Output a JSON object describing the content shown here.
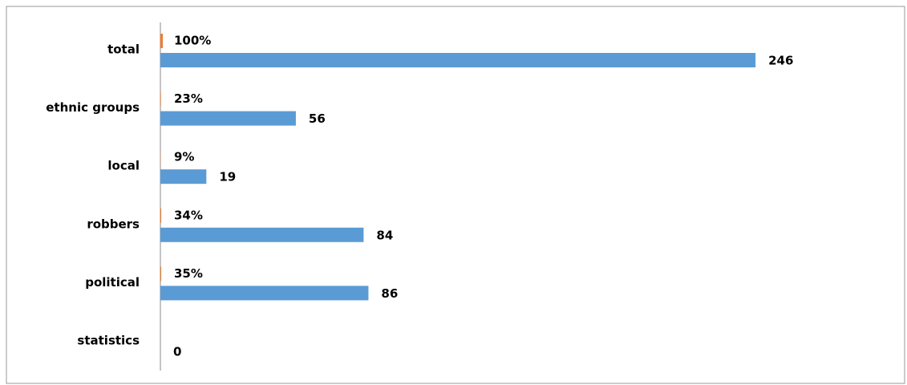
{
  "chart_data": {
    "type": "barh",
    "categories": [
      "total",
      "ethnic groups",
      "local",
      "robbers",
      "political",
      "statistics"
    ],
    "series": [
      {
        "color": "#ed7d31",
        "values": [
          1,
          0.23,
          0.09,
          0.34,
          0.35,
          null
        ],
        "value_labels": [
          "100%",
          "23%",
          "9%",
          "34%",
          "35%",
          null
        ]
      },
      {
        "color": "#5b9bd5",
        "values": [
          246,
          56,
          19,
          84,
          86,
          0
        ]
      }
    ],
    "xlim": [
      0,
      300
    ]
  }
}
